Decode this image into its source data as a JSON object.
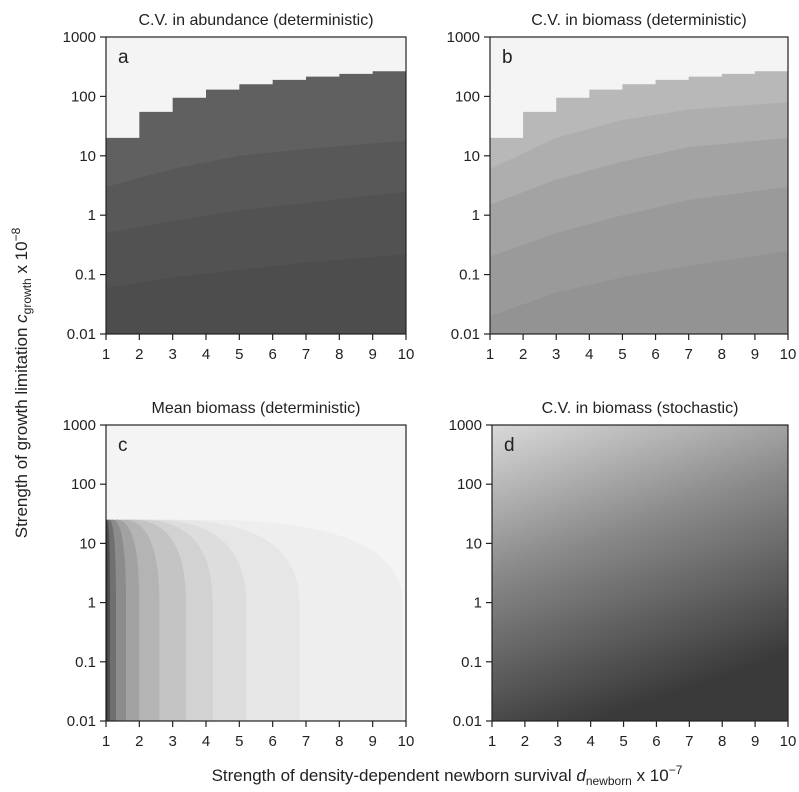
{
  "figure": {
    "xlabel_main": "Strength of density-dependent newborn survival ",
    "xlabel_var": "d",
    "xlabel_sub": "newborn",
    "xlabel_unit": " x 10",
    "xlabel_exp": "−7",
    "ylabel_main": "Strength of growth limitation ",
    "ylabel_var": "c",
    "ylabel_sub": "growth",
    "ylabel_unit": " x 10",
    "ylabel_exp": "−8"
  },
  "chart_data": [
    {
      "type": "heatmap",
      "panel": "a",
      "title": "C.V. in abundance (deterministic)",
      "x": [
        1,
        2,
        3,
        4,
        5,
        6,
        7,
        8,
        9,
        10
      ],
      "x_tick_labels": [
        "1",
        "2",
        "3",
        "4",
        "5",
        "6",
        "7",
        "8",
        "9",
        "10"
      ],
      "y_tick_values": [
        0.01,
        0.1,
        1,
        10,
        100,
        1000
      ],
      "y_tick_labels": [
        "0.01",
        "0.1",
        "1",
        "10",
        "100",
        "1000"
      ],
      "xlim": [
        1,
        10
      ],
      "ylim": [
        0.01,
        1000
      ],
      "yscale": "log",
      "contours": [
        {
          "color": "#f4f4f4",
          "boundary": []
        },
        {
          "color": "#606060",
          "boundary": [
            [
              1,
              20
            ],
            [
              2,
              55
            ],
            [
              3,
              95
            ],
            [
              4,
              130
            ],
            [
              5,
              160
            ],
            [
              6,
              190
            ],
            [
              7,
              215
            ],
            [
              8,
              240
            ],
            [
              9,
              265
            ],
            [
              10,
              290
            ]
          ]
        },
        {
          "color": "#585858",
          "boundary": [
            [
              1,
              3
            ],
            [
              3,
              6
            ],
            [
              5,
              10
            ],
            [
              7,
              13
            ],
            [
              10,
              18
            ]
          ]
        },
        {
          "color": "#525252",
          "boundary": [
            [
              1,
              0.5
            ],
            [
              3,
              0.8
            ],
            [
              5,
              1.2
            ],
            [
              7,
              1.6
            ],
            [
              10,
              2.5
            ]
          ]
        },
        {
          "color": "#4d4d4d",
          "boundary": [
            [
              1,
              0.06
            ],
            [
              3,
              0.09
            ],
            [
              5,
              0.12
            ],
            [
              7,
              0.16
            ],
            [
              10,
              0.22
            ]
          ]
        }
      ]
    },
    {
      "type": "heatmap",
      "panel": "b",
      "title": "C.V. in biomass (deterministic)",
      "x": [
        1,
        2,
        3,
        4,
        5,
        6,
        7,
        8,
        9,
        10
      ],
      "x_tick_labels": [
        "1",
        "2",
        "3",
        "4",
        "5",
        "6",
        "7",
        "8",
        "9",
        "10"
      ],
      "y_tick_values": [
        0.01,
        0.1,
        1,
        10,
        100,
        1000
      ],
      "y_tick_labels": [
        "0.01",
        "0.1",
        "1",
        "10",
        "100",
        "1000"
      ],
      "xlim": [
        1,
        10
      ],
      "ylim": [
        0.01,
        1000
      ],
      "yscale": "log",
      "contours": [
        {
          "color": "#f4f4f4",
          "boundary": []
        },
        {
          "color": "#b8b8b8",
          "boundary": [
            [
              1,
              20
            ],
            [
              2,
              55
            ],
            [
              3,
              95
            ],
            [
              4,
              130
            ],
            [
              5,
              160
            ],
            [
              6,
              190
            ],
            [
              7,
              215
            ],
            [
              8,
              240
            ],
            [
              9,
              265
            ],
            [
              10,
              290
            ]
          ]
        },
        {
          "color": "#aeaeae",
          "boundary": [
            [
              1,
              6
            ],
            [
              3,
              20
            ],
            [
              5,
              40
            ],
            [
              7,
              60
            ],
            [
              10,
              80
            ]
          ]
        },
        {
          "color": "#a3a3a3",
          "boundary": [
            [
              1,
              1.5
            ],
            [
              3,
              4
            ],
            [
              5,
              8
            ],
            [
              7,
              14
            ],
            [
              10,
              20
            ]
          ]
        },
        {
          "color": "#9a9a9a",
          "boundary": [
            [
              1,
              0.2
            ],
            [
              3,
              0.5
            ],
            [
              5,
              1
            ],
            [
              7,
              1.8
            ],
            [
              10,
              3
            ]
          ]
        },
        {
          "color": "#939393",
          "boundary": [
            [
              1,
              0.02
            ],
            [
              3,
              0.05
            ],
            [
              5,
              0.09
            ],
            [
              7,
              0.14
            ],
            [
              10,
              0.25
            ]
          ]
        }
      ]
    },
    {
      "type": "heatmap",
      "panel": "c",
      "title": "Mean biomass (deterministic)",
      "x": [
        1,
        2,
        3,
        4,
        5,
        6,
        7,
        8,
        9,
        10
      ],
      "x_tick_labels": [
        "1",
        "2",
        "3",
        "4",
        "5",
        "6",
        "7",
        "8",
        "9",
        "10"
      ],
      "y_tick_values": [
        0.01,
        0.1,
        1,
        10,
        100,
        1000
      ],
      "y_tick_labels": [
        "0.01",
        "0.1",
        "1",
        "10",
        "100",
        "1000"
      ],
      "xlim": [
        1,
        10
      ],
      "ylim": [
        0.01,
        1000
      ],
      "yscale": "log",
      "bands": [
        {
          "color": "#eeeeee",
          "x_edge": 9.9
        },
        {
          "color": "#e6e6e6",
          "x_edge": 6.8
        },
        {
          "color": "#dddddd",
          "x_edge": 5.2
        },
        {
          "color": "#d2d2d2",
          "x_edge": 4.2
        },
        {
          "color": "#c4c4c4",
          "x_edge": 3.4
        },
        {
          "color": "#b4b4b4",
          "x_edge": 2.6
        },
        {
          "color": "#a2a2a2",
          "x_edge": 2.0
        },
        {
          "color": "#8c8c8c",
          "x_edge": 1.6
        },
        {
          "color": "#707070",
          "x_edge": 1.3
        },
        {
          "color": "#4e4e4e",
          "x_edge": 1.12
        },
        {
          "color": "#2a2a2a",
          "x_edge": 1.04
        }
      ],
      "upper_region": {
        "color": "#f4f4f4"
      }
    },
    {
      "type": "heatmap",
      "panel": "d",
      "title": "C.V. in biomass (stochastic)",
      "x": [
        1,
        2,
        3,
        4,
        5,
        6,
        7,
        8,
        9,
        10
      ],
      "x_tick_labels": [
        "1",
        "2",
        "3",
        "4",
        "5",
        "6",
        "7",
        "8",
        "9",
        "10"
      ],
      "y_tick_values": [
        0.01,
        0.1,
        1,
        10,
        100,
        1000
      ],
      "y_tick_labels": [
        "0.01",
        "0.1",
        "1",
        "10",
        "100",
        "1000"
      ],
      "xlim": [
        1,
        10
      ],
      "ylim": [
        0.01,
        1000
      ],
      "yscale": "log",
      "gradient": {
        "low_color": "#3a3a3a",
        "high_color": "#d9d9d9",
        "direction": "darker toward high x and low y"
      }
    }
  ]
}
